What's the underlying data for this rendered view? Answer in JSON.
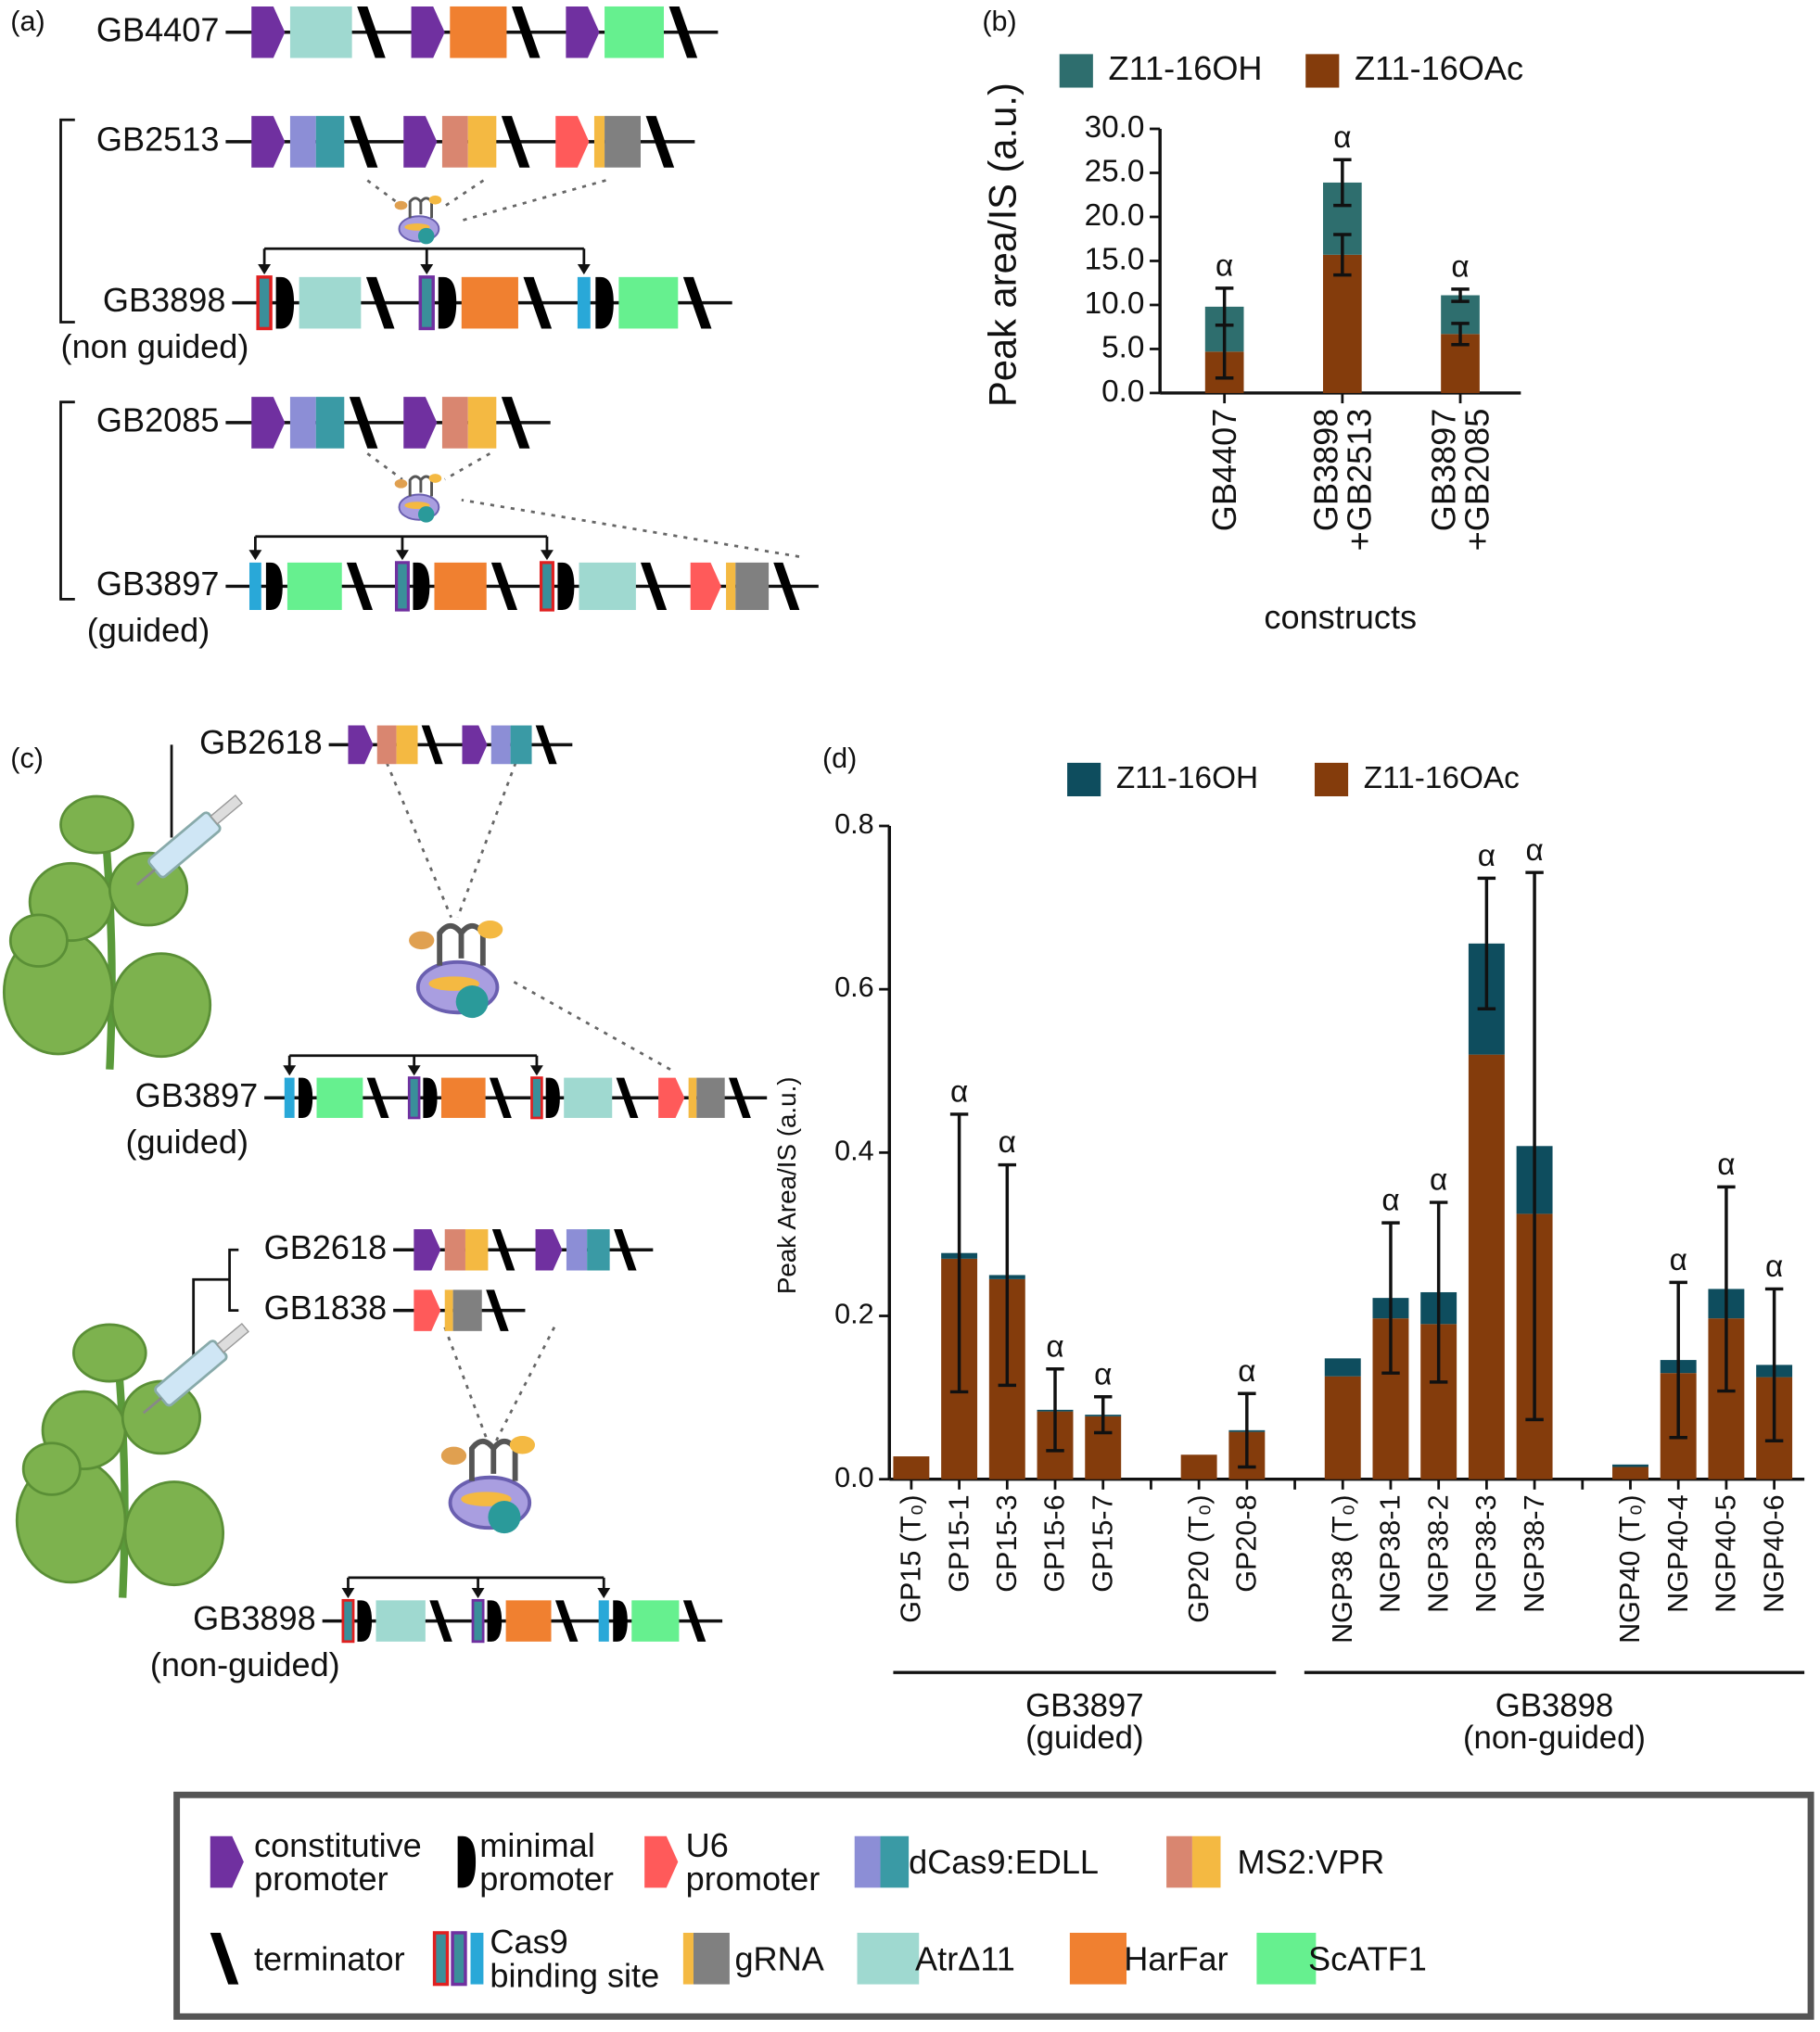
{
  "panels": {
    "a": "(a)",
    "b": "(b)",
    "c": "(c)",
    "d": "(d)"
  },
  "diagram_a": {
    "constructs": [
      {
        "name": "GB4407"
      },
      {
        "name": "GB2513"
      },
      {
        "name": "GB3898",
        "note": "(non guided)"
      },
      {
        "name": "GB2085"
      },
      {
        "name": "GB3897",
        "note": "(guided)"
      }
    ]
  },
  "diagram_c": {
    "constructs": [
      {
        "name": "GB2618"
      },
      {
        "name": "GB3897",
        "note": "(guided)"
      },
      {
        "name": "GB2618"
      },
      {
        "name": "GB1838"
      },
      {
        "name": "GB3898",
        "note": "(non-guided)"
      }
    ]
  },
  "chart_data": [
    {
      "type": "bar",
      "stacked": true,
      "categories": [
        "GB4407",
        "GB3898\n+GB2513",
        "GB3897\n+GB2085"
      ],
      "series": [
        {
          "name": "Z11-16OH",
          "color": "#2e6e6e",
          "values": [
            5.1,
            8.2,
            4.4
          ],
          "errors": [
            2.1,
            2.6,
            0.7
          ]
        },
        {
          "name": "Z11-16OAc",
          "color": "#843c0c",
          "values": [
            4.7,
            15.7,
            6.7
          ],
          "errors": [
            3.0,
            2.3,
            1.2
          ]
        }
      ],
      "annotations": [
        "α",
        "α",
        "α"
      ],
      "xlabel": "constructs",
      "ylabel": "Peak area/IS (a.u.)",
      "ylim": [
        0,
        30
      ],
      "yticks": [
        {
          "value": 0,
          "label": "0.0"
        },
        {
          "value": 5,
          "label": "5.0"
        },
        {
          "value": 10,
          "label": "10.0"
        },
        {
          "value": 15,
          "label": "15.0"
        },
        {
          "value": 20,
          "label": "20.0"
        },
        {
          "value": 25,
          "label": "25.0"
        },
        {
          "value": 30,
          "label": "30.0"
        }
      ],
      "legend": "top"
    },
    {
      "type": "bar",
      "stacked": true,
      "categories": [
        "GP15 (T₀)",
        "GP15-1",
        "GP15-3",
        "GP15-6",
        "GP15-7",
        null,
        "GP20 (T₀)",
        "GP20-8",
        null,
        "NGP38 (T₀)",
        "NGP38-1",
        "NGP38-2",
        "NGP38-3",
        "NGP38-7",
        null,
        "NGP40 (T₀)",
        "NGP40-4",
        "NGP40-5",
        "NGP40-6"
      ],
      "series": [
        {
          "name": "Z11-16OH",
          "color": "#0e4d5e",
          "values": [
            0,
            0.007,
            0.005,
            0.002,
            0.002,
            null,
            0,
            0.002,
            null,
            0.022,
            0.025,
            0.039,
            0.136,
            0.083,
            null,
            0.003,
            0.016,
            0.036,
            0.015
          ],
          "errors": [
            null,
            0.17,
            0.135,
            0.05,
            0.022,
            null,
            null,
            0.045,
            null,
            null,
            0.092,
            0.11,
            0.08,
            0.335,
            null,
            null,
            0.095,
            0.125,
            0.093
          ]
        },
        {
          "name": "Z11-16OAc",
          "color": "#843c0c",
          "values": [
            0.028,
            0.27,
            0.245,
            0.083,
            0.077,
            null,
            0.03,
            0.058,
            null,
            0.126,
            0.197,
            0.19,
            0.52,
            0.325,
            null,
            0.015,
            0.13,
            0.197,
            0.125
          ]
        }
      ],
      "annotations": [
        null,
        "α",
        "α",
        "α",
        "α",
        null,
        null,
        "α",
        null,
        null,
        "α",
        "α",
        "α",
        "α",
        null,
        null,
        "α",
        "α",
        "α"
      ],
      "groups": [
        {
          "label": "GB3897\n(guided)"
        },
        {
          "label": "GB3898\n(non-guided)"
        }
      ],
      "ylabel": "Peak Area/IS (a.u.)",
      "ylim": [
        0,
        0.8
      ],
      "yticks": [
        {
          "value": 0,
          "label": "0.0"
        },
        {
          "value": 0.2,
          "label": "0.2"
        },
        {
          "value": 0.4,
          "label": "0.4"
        },
        {
          "value": 0.6,
          "label": "0.6"
        },
        {
          "value": 0.8,
          "label": "0.8"
        }
      ],
      "legend": "top"
    }
  ],
  "legend": {
    "items": [
      {
        "label": "constitutive\npromoter"
      },
      {
        "label": "minimal\npromoter"
      },
      {
        "label": "U6\npromoter"
      },
      {
        "label": "dCas9:EDLL"
      },
      {
        "label": "MS2:VPR"
      },
      {
        "label": "terminator"
      },
      {
        "label": "Cas9\nbinding site"
      },
      {
        "label": "gRNA"
      },
      {
        "label": "AtrΔ11"
      },
      {
        "label": "HarFar"
      },
      {
        "label": "ScATF1"
      }
    ]
  }
}
